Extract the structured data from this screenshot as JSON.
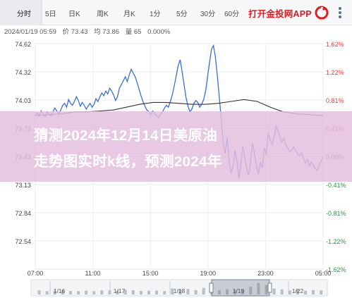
{
  "tabs": [
    {
      "label": "分时",
      "active": true
    },
    {
      "label": "5日",
      "active": false
    },
    {
      "label": "日K",
      "active": false
    },
    {
      "label": "周K",
      "active": false
    },
    {
      "label": "月K",
      "active": false
    },
    {
      "label": "1分",
      "active": false
    },
    {
      "label": "5分",
      "active": false
    },
    {
      "label": "30分",
      "active": false
    },
    {
      "label": "60分",
      "active": false
    }
  ],
  "promo": {
    "label": "打开金投网APP",
    "color": "#e01c23"
  },
  "info": {
    "datetime": "2024/01/19 05:59",
    "price": "价 73.43",
    "average": "均 73.86",
    "volume": "量 65",
    "change": "0.000%"
  },
  "overlay": {
    "line1": "猜测2024年12月14日美原油",
    "line2": "走势图实时k线，预测2024年"
  },
  "colors": {
    "price_line": "#3a6fd8",
    "average_line": "#333333",
    "rise": "#e5393f",
    "fall": "#1f9e3b",
    "banner": "#e4bede"
  },
  "chart_data": {
    "type": "line",
    "title": "",
    "xlabel": "",
    "ylabel": "",
    "y_ticks_left": [
      "74.62",
      "74.32",
      "74.03",
      "73.72",
      "73.43",
      "73.13",
      "72.84",
      "72.54"
    ],
    "y_ticks_right": [
      "1.62%",
      "1.22%",
      "0.81%",
      "0.41%",
      "0.00%",
      "-0.41%",
      "-0.81%",
      "-1.22%",
      "-1.62%"
    ],
    "x_ticks": [
      "07:00",
      "11:00",
      "15:00",
      "19:00",
      "23:00",
      "05:00"
    ],
    "ylim": [
      72.24,
      74.62
    ],
    "navigator_labels": [
      "1/16",
      "1/17",
      "1/18",
      "1/19",
      "1/22"
    ],
    "series": [
      {
        "kind": "price",
        "x": [
          0,
          3,
          6,
          9,
          12,
          15,
          18,
          21,
          24,
          27,
          30,
          33,
          36,
          39,
          42,
          45,
          48,
          51,
          54,
          57,
          60,
          63,
          66,
          69,
          72,
          75,
          78,
          81,
          84,
          87,
          90,
          93,
          96,
          99,
          102,
          105,
          108,
          111,
          114,
          117,
          120,
          123,
          126,
          129,
          132,
          135,
          138,
          141,
          144,
          147,
          150,
          153,
          156,
          159,
          162,
          165,
          168,
          171,
          174,
          177,
          180,
          183,
          186,
          189,
          192,
          195,
          198,
          201,
          204,
          207,
          210,
          213,
          216,
          219,
          222,
          225,
          228,
          231,
          234,
          237,
          240,
          243,
          246,
          249,
          252,
          255,
          258,
          261,
          264,
          267,
          270,
          273,
          276,
          279,
          282,
          285,
          288,
          291,
          294,
          297,
          300,
          303,
          306,
          309,
          312,
          315,
          318,
          321,
          324,
          327,
          330,
          333,
          336,
          339,
          342,
          345,
          348,
          351,
          354,
          357,
          360,
          363,
          366,
          369,
          372,
          375,
          378,
          381,
          384,
          387,
          390,
          393,
          396,
          399,
          402,
          405,
          408,
          411,
          414,
          417,
          420,
          423,
          426,
          429,
          432,
          435,
          438,
          441
        ],
        "y": [
          73.87,
          73.89,
          73.86,
          73.91,
          73.88,
          73.85,
          73.9,
          73.87,
          73.86,
          73.9,
          73.94,
          73.91,
          73.88,
          73.92,
          73.97,
          73.99,
          73.95,
          74.03,
          73.99,
          73.97,
          74.01,
          74.06,
          74.02,
          73.96,
          74.0,
          73.97,
          73.93,
          73.96,
          73.99,
          73.95,
          73.98,
          74.04,
          74.01,
          74.06,
          74.1,
          74.07,
          74.12,
          74.09,
          74.15,
          74.12,
          74.08,
          74.02,
          74.06,
          74.15,
          74.19,
          74.23,
          74.27,
          74.22,
          74.29,
          74.35,
          74.31,
          74.27,
          74.21,
          74.14,
          74.07,
          74.01,
          73.96,
          73.92,
          73.9,
          73.87,
          73.91,
          73.88,
          73.86,
          73.84,
          73.87,
          73.9,
          73.94,
          73.97,
          73.95,
          74.01,
          74.08,
          74.18,
          74.28,
          74.39,
          74.45,
          74.32,
          74.19,
          74.05,
          73.96,
          73.9,
          73.93,
          73.99,
          74.02,
          74.0,
          73.95,
          73.98,
          74.03,
          74.12,
          74.27,
          74.42,
          74.56,
          74.6,
          74.48,
          74.28,
          74.05,
          73.82,
          73.58,
          73.46,
          73.63,
          73.39,
          73.25,
          73.32,
          73.49,
          73.38,
          73.2,
          73.35,
          73.54,
          73.42,
          73.3,
          73.23,
          73.38,
          73.57,
          73.45,
          73.33,
          73.24,
          73.37,
          73.31,
          73.52,
          73.45,
          73.68,
          73.6,
          73.56,
          73.63,
          73.75,
          73.7,
          73.64,
          73.58,
          73.62,
          73.55,
          73.52,
          73.48,
          73.5,
          73.53,
          73.49,
          73.46,
          73.44,
          73.47,
          73.41,
          73.36,
          73.4,
          73.33,
          73.37,
          73.34,
          73.3,
          73.28,
          73.33,
          73.38,
          73.43
        ]
      },
      {
        "kind": "average",
        "x": [
          0,
          20,
          40,
          60,
          80,
          100,
          120,
          140,
          160,
          180,
          200,
          220,
          240,
          260,
          280,
          300,
          320,
          340,
          360,
          380,
          400,
          420,
          441
        ],
        "y": [
          73.86,
          73.87,
          73.88,
          73.9,
          73.9,
          73.91,
          73.92,
          73.95,
          73.98,
          74.0,
          74.0,
          73.99,
          73.98,
          73.98,
          73.99,
          74.01,
          74.03,
          74.01,
          73.95,
          73.9,
          73.88,
          73.87,
          73.86
        ]
      },
      {
        "kind": "volume",
        "x": [
          6,
          18,
          30,
          42,
          54,
          66,
          78,
          90,
          102,
          114,
          126,
          138,
          150,
          162,
          174,
          186,
          198,
          210,
          222,
          234,
          246,
          258,
          270,
          282,
          294,
          306,
          318,
          330,
          342,
          354,
          366,
          378,
          390,
          402,
          414,
          426,
          438
        ],
        "y": [
          0.3,
          0.25,
          0.28,
          0.33,
          0.26,
          0.25,
          0.28,
          0.24,
          0.3,
          0.31,
          0.27,
          0.35,
          0.32,
          0.27,
          0.28,
          0.29,
          0.25,
          0.45,
          0.38,
          0.41,
          0.33,
          0.49,
          0.37,
          0.31,
          0.4,
          0.34,
          0.36,
          0.58,
          0.86,
          0.72,
          0.44,
          0.38,
          0.3,
          0.36,
          0.28,
          0.33,
          0.3
        ]
      }
    ]
  }
}
